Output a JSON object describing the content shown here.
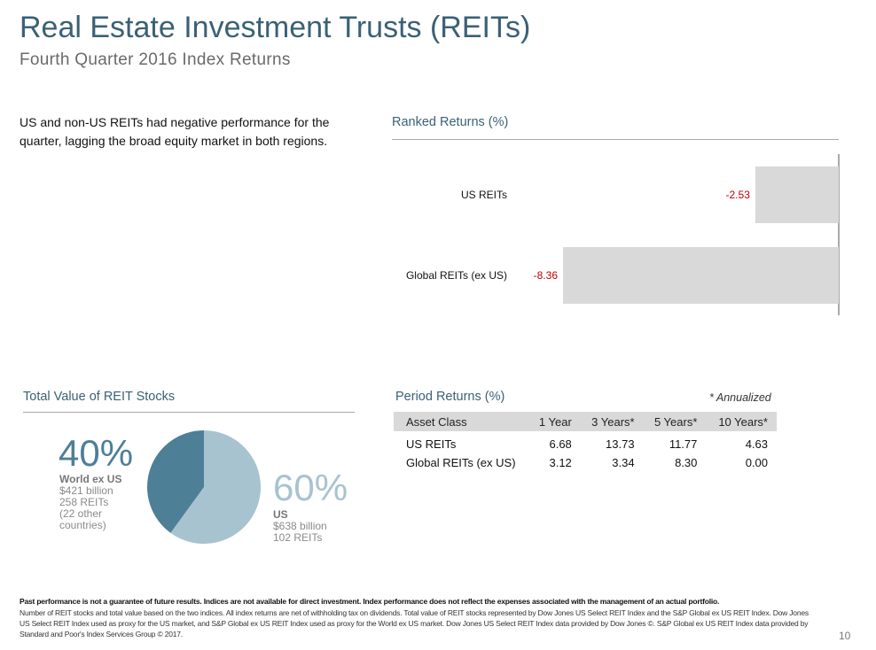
{
  "header": {
    "title": "Real Estate Investment Trusts (REITs)",
    "subtitle": "Fourth Quarter 2016 Index Returns"
  },
  "intro": "US and non-US REITs had negative performance for the quarter, lagging the broad equity market in both regions.",
  "ranked_returns": {
    "title": "Ranked Returns (%)"
  },
  "chart_data": {
    "type": "bar",
    "orientation": "horizontal",
    "title": "Ranked Returns (%)",
    "categories": [
      "US REITs",
      "Global REITs (ex US)"
    ],
    "values": [
      -2.53,
      -8.36
    ],
    "value_labels": [
      "-2.53",
      "-8.36"
    ],
    "xlim": [
      -10,
      0
    ],
    "bar_color": "#d9d9d9",
    "label_color": "#c00000"
  },
  "total_value": {
    "title": "Total Value of REIT Stocks",
    "world": {
      "pct": "40%",
      "pct_value": 40,
      "name": "World ex US",
      "lines": [
        "$421 billion",
        "258 REITs",
        "(22 other",
        "countries)"
      ],
      "color": "#4d7f97"
    },
    "us": {
      "pct": "60%",
      "pct_value": 60,
      "name": "US",
      "lines": [
        "$638 billion",
        "102 REITs"
      ],
      "color": "#a7c3cf"
    }
  },
  "period_returns": {
    "title": "Period Returns (%)",
    "note": "* Annualized",
    "headers": [
      "Asset Class",
      "1 Year",
      "3 Years*",
      "5 Years*",
      "10 Years*"
    ],
    "rows": [
      [
        "US REITs",
        "6.68",
        "13.73",
        "11.77",
        "4.63"
      ],
      [
        "Global REITs (ex US)",
        "3.12",
        "3.34",
        "8.30",
        "0.00"
      ]
    ]
  },
  "footer": {
    "disclaimer_bold": "Past performance is not a guarantee of future results. Indices are not available for direct investment. Index performance does not reflect the expenses associated with the management of an actual portfolio.",
    "disclaimer_text": "Number of REIT stocks and total value based on the two indices. All index returns are net of withholding tax on dividends. Total value of REIT stocks represented by Dow Jones US Select REIT Index and the S&P Global ex US REIT Index. Dow Jones US Select REIT Index used as proxy for the US market, and S&P Global ex US REIT Index used as proxy for the World ex US market. Dow Jones US Select REIT Index data provided by Dow Jones ©. S&P Global ex US REIT Index data provided by Standard and Poor's Index Services Group © 2017.",
    "page_number": "10"
  }
}
